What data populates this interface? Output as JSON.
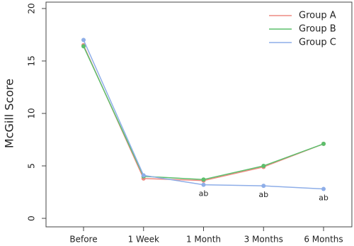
{
  "chart_data": {
    "type": "line",
    "y_label": "McGill Score",
    "categories": [
      "Before",
      "1 Week",
      "1 Month",
      "3 Months",
      "6 Months"
    ],
    "series": [
      {
        "name": "Group A",
        "color": "#ee8a82",
        "values": [
          16.5,
          3.8,
          3.6,
          4.9,
          7.1
        ]
      },
      {
        "name": "Group B",
        "color": "#5cbf6c",
        "values": [
          16.4,
          4.0,
          3.7,
          5.0,
          7.1
        ]
      },
      {
        "name": "Group C",
        "color": "#8eaee8",
        "values": [
          17.0,
          4.1,
          3.2,
          3.1,
          2.8
        ]
      }
    ],
    "annotations": [
      {
        "text": "ab",
        "category": "1 Month",
        "series": "Group C"
      },
      {
        "text": "ab",
        "category": "3 Months",
        "series": "Group C"
      },
      {
        "text": "ab",
        "category": "6 Months",
        "series": "Group C"
      }
    ],
    "ylim": [
      0,
      20
    ],
    "yticks": [
      0,
      5,
      10,
      15,
      20
    ],
    "grid": false,
    "legend": "top-right"
  }
}
